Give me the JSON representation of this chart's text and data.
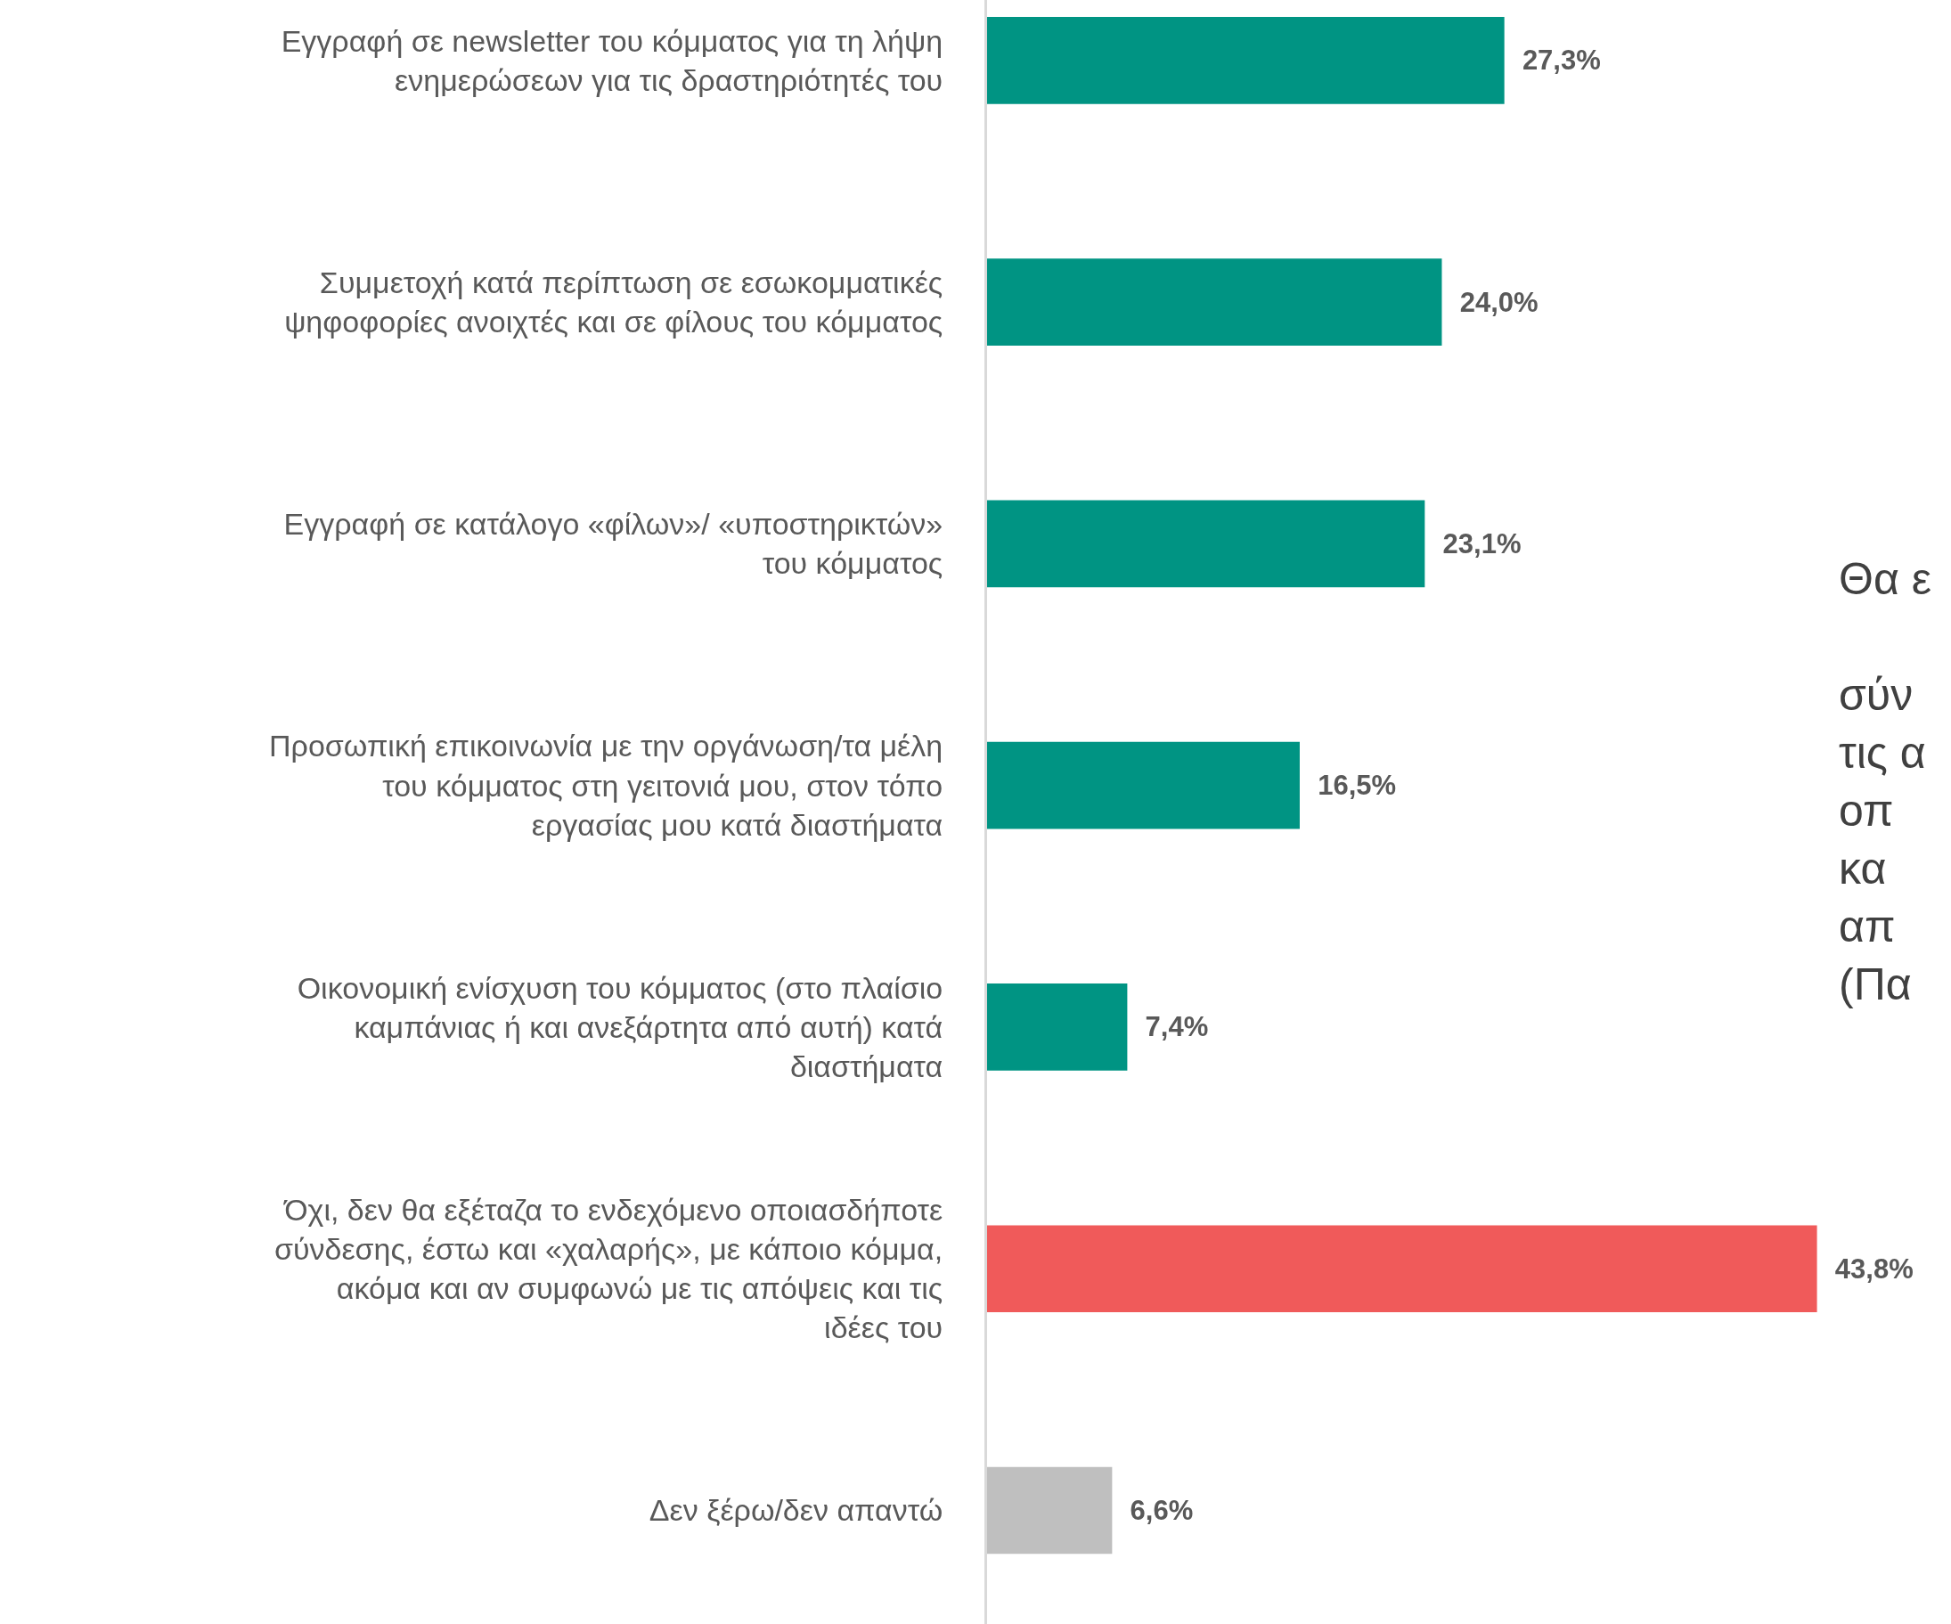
{
  "chart_data": {
    "type": "bar",
    "orientation": "horizontal",
    "categories": [
      "Εγγραφή σε newsletter του κόμματος για τη λήψη ενημερώσεων για τις δραστηριότητές του",
      "Συμμετοχή κατά περίπτωση σε εσωκομματικές ψηφοφορίες ανοιχτές και σε φίλους του κόμματος",
      "Εγγραφή σε κατάλογο «φίλων»/ «υποστηρικτών» του κόμματος",
      "Προσωπική επικοινωνία με την οργάνωση/τα μέλη του κόμματος στη γειτονιά μου, στον τόπο εργασίας μου κατά διαστήματα",
      "Οικονομική ενίσχυση του κόμματος (στο πλαίσιο καμπάνιας ή και ανεξάρτητα από αυτή) κατά διαστήματα",
      "Όχι, δεν θα εξέταζα το ενδεχόμενο οποιασδήποτε σύνδεσης, έστω και «χαλαρής», με κάποιο κόμμα, ακόμα και αν συμφωνώ με τις απόψεις και τις ιδέες του",
      "Δεν ξέρω/δεν απαντώ"
    ],
    "values": [
      27.3,
      24.0,
      23.1,
      16.5,
      7.4,
      43.8,
      6.6
    ],
    "value_labels": [
      "27,3%",
      "24,0%",
      "23,1%",
      "16,5%",
      "7,4%",
      "43,8%",
      "6,6%"
    ],
    "colors": [
      "#009483",
      "#009483",
      "#009483",
      "#009483",
      "#009483",
      "#f05a5a",
      "#bfbfbf"
    ],
    "annotations": [
      "Θα ε\n\nσύν\nτις α\nοπ\nκα\nαπ\n(Πα"
    ],
    "legend": false
  }
}
